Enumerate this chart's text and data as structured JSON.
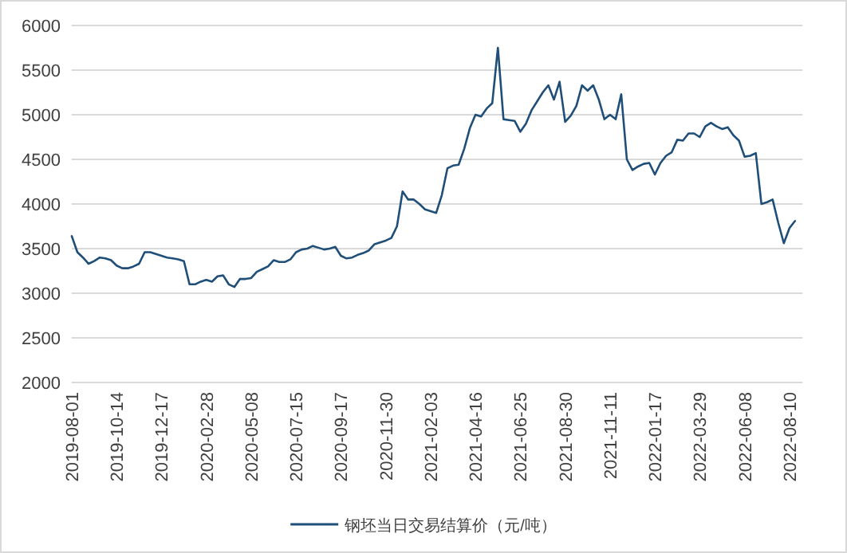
{
  "chart_data": {
    "type": "line",
    "categories": [
      "2019-08-01",
      null,
      null,
      null,
      null,
      null,
      null,
      null,
      "2019-10-14",
      null,
      null,
      null,
      null,
      null,
      null,
      null,
      "2019-12-17",
      null,
      null,
      null,
      null,
      null,
      null,
      null,
      "2020-02-28",
      null,
      null,
      null,
      null,
      null,
      null,
      null,
      "2020-05-08",
      null,
      null,
      null,
      null,
      null,
      null,
      null,
      "2020-07-15",
      null,
      null,
      null,
      null,
      null,
      null,
      null,
      "2020-09-17",
      null,
      null,
      null,
      null,
      null,
      null,
      null,
      "2020-11-30",
      null,
      null,
      null,
      null,
      null,
      null,
      null,
      "2021-02-03",
      null,
      null,
      null,
      null,
      null,
      null,
      null,
      "2021-04-16",
      null,
      null,
      null,
      null,
      null,
      null,
      null,
      "2021-06-25",
      null,
      null,
      null,
      null,
      null,
      null,
      null,
      "2021-08-30",
      null,
      null,
      null,
      null,
      null,
      null,
      null,
      "2021-11-11",
      null,
      null,
      null,
      null,
      null,
      null,
      null,
      "2022-01-17",
      null,
      null,
      null,
      null,
      null,
      null,
      null,
      "2022-03-29",
      null,
      null,
      null,
      null,
      null,
      null,
      null,
      "2022-06-08",
      null,
      null,
      null,
      null,
      null,
      null,
      null,
      "2022-08-10",
      null
    ],
    "ylim": [
      2000,
      6000
    ],
    "yticks": [
      2000,
      2500,
      3000,
      3500,
      4000,
      4500,
      5000,
      5500,
      6000
    ],
    "grid": "y",
    "legend": "bottom",
    "series": [
      {
        "name": "钢坯当日交易结算价（元/吨）",
        "color": "#1f4e79",
        "values": [
          3640,
          3460,
          3400,
          3330,
          3360,
          3400,
          3390,
          3370,
          3310,
          3280,
          3280,
          3300,
          3330,
          3460,
          3460,
          3440,
          3420,
          3400,
          3390,
          3380,
          3360,
          3100,
          3100,
          3130,
          3150,
          3130,
          3190,
          3200,
          3100,
          3070,
          3160,
          3160,
          3170,
          3240,
          3270,
          3300,
          3370,
          3350,
          3350,
          3380,
          3460,
          3490,
          3500,
          3530,
          3510,
          3490,
          3500,
          3520,
          3420,
          3390,
          3400,
          3430,
          3450,
          3480,
          3550,
          3570,
          3590,
          3620,
          3750,
          4140,
          4050,
          4050,
          4000,
          3940,
          3920,
          3900,
          4100,
          4400,
          4430,
          4440,
          4620,
          4850,
          5000,
          4980,
          5070,
          5130,
          5750,
          4950,
          4940,
          4930,
          4810,
          4900,
          5050,
          5150,
          5250,
          5330,
          5170,
          5370,
          4920,
          4990,
          5100,
          5330,
          5270,
          5330,
          5170,
          4950,
          5000,
          4950,
          5230,
          4500,
          4380,
          4420,
          4450,
          4460,
          4330,
          4460,
          4540,
          4580,
          4720,
          4710,
          4790,
          4790,
          4750,
          4870,
          4910,
          4870,
          4840,
          4860,
          4770,
          4710,
          4530,
          4540,
          4570,
          4000,
          4020,
          4050,
          3790,
          3560,
          3730,
          3810
        ]
      }
    ]
  }
}
